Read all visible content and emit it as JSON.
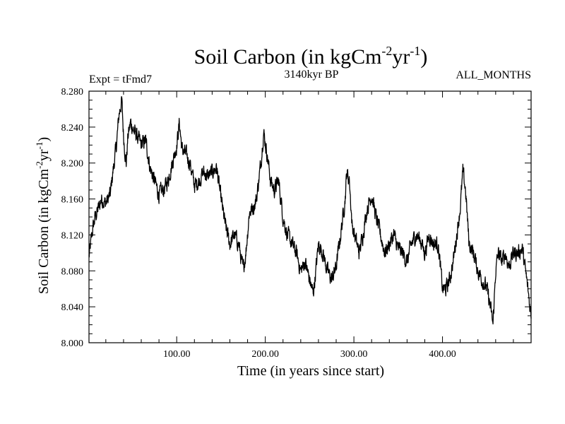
{
  "chart_data": {
    "type": "line",
    "title": {
      "main": "Soil Carbon (in kgCm",
      "sup1": "-2",
      "mid": "yr",
      "sup2": "-1",
      "end": ")"
    },
    "subtitle_left": "Expt = tFmd7",
    "subtitle_center": "3140kyr BP",
    "subtitle_right": "ALL_MONTHS",
    "xlabel": "Time (in years since start)",
    "ylabel": {
      "main": "Soil Carbon (in kgCm",
      "sup1": "-2",
      "mid": "yr",
      "sup2": "-1",
      "end": ")"
    },
    "xlim": [
      1,
      500
    ],
    "ylim": [
      8.0,
      8.28
    ],
    "xticks": [
      {
        "value": 100,
        "label": "100.00"
      },
      {
        "value": 200,
        "label": "200.00"
      },
      {
        "value": 300,
        "label": "300.00"
      },
      {
        "value": 400,
        "label": "400.00"
      }
    ],
    "yticks": [
      {
        "value": 8.0,
        "label": "8.000"
      },
      {
        "value": 8.04,
        "label": "8.040"
      },
      {
        "value": 8.08,
        "label": "8.080"
      },
      {
        "value": 8.12,
        "label": "8.120"
      },
      {
        "value": 8.16,
        "label": "8.160"
      },
      {
        "value": 8.2,
        "label": "8.200"
      },
      {
        "value": 8.24,
        "label": "8.240"
      },
      {
        "value": 8.28,
        "label": "8.280"
      }
    ],
    "series": [
      {
        "name": "Soil Carbon",
        "color": "#000000",
        "x": [
          1,
          5,
          8,
          12,
          15,
          20,
          25,
          28,
          32,
          35,
          38,
          40,
          43,
          45,
          48,
          52,
          55,
          60,
          65,
          70,
          75,
          80,
          85,
          90,
          95,
          100,
          103,
          106,
          110,
          115,
          120,
          125,
          130,
          135,
          140,
          145,
          150,
          155,
          160,
          165,
          170,
          175,
          178,
          182,
          186,
          190,
          195,
          198,
          202,
          206,
          210,
          215,
          220,
          225,
          230,
          235,
          240,
          245,
          250,
          254,
          257,
          260,
          265,
          270,
          275,
          280,
          285,
          290,
          292,
          295,
          298,
          302,
          306,
          310,
          315,
          320,
          325,
          330,
          335,
          340,
          345,
          350,
          355,
          360,
          365,
          370,
          375,
          380,
          385,
          390,
          395,
          400,
          404,
          408,
          412,
          416,
          420,
          423,
          426,
          430,
          435,
          440,
          445,
          450,
          454,
          457,
          460,
          463,
          467,
          471,
          475,
          480,
          485,
          490,
          495,
          500
        ],
        "values": [
          8.095,
          8.125,
          8.14,
          8.15,
          8.16,
          8.155,
          8.165,
          8.19,
          8.22,
          8.255,
          8.27,
          8.23,
          8.2,
          8.23,
          8.245,
          8.235,
          8.23,
          8.22,
          8.225,
          8.195,
          8.18,
          8.165,
          8.17,
          8.18,
          8.2,
          8.22,
          8.245,
          8.215,
          8.21,
          8.2,
          8.175,
          8.18,
          8.19,
          8.185,
          8.19,
          8.195,
          8.16,
          8.13,
          8.11,
          8.12,
          8.11,
          8.08,
          8.1,
          8.145,
          8.15,
          8.16,
          8.2,
          8.235,
          8.21,
          8.18,
          8.17,
          8.18,
          8.14,
          8.12,
          8.11,
          8.1,
          8.08,
          8.09,
          8.07,
          8.055,
          8.08,
          8.11,
          8.1,
          8.08,
          8.07,
          8.085,
          8.12,
          8.16,
          8.19,
          8.18,
          8.13,
          8.115,
          8.1,
          8.12,
          8.15,
          8.165,
          8.14,
          8.12,
          8.1,
          8.11,
          8.12,
          8.105,
          8.1,
          8.09,
          8.11,
          8.12,
          8.115,
          8.1,
          8.12,
          8.11,
          8.11,
          8.06,
          8.06,
          8.07,
          8.09,
          8.12,
          8.15,
          8.19,
          8.17,
          8.11,
          8.1,
          8.08,
          8.07,
          8.06,
          8.04,
          8.02,
          8.08,
          8.1,
          8.09,
          8.1,
          8.085,
          8.1,
          8.1,
          8.105,
          8.07,
          8.03
        ]
      }
    ]
  }
}
